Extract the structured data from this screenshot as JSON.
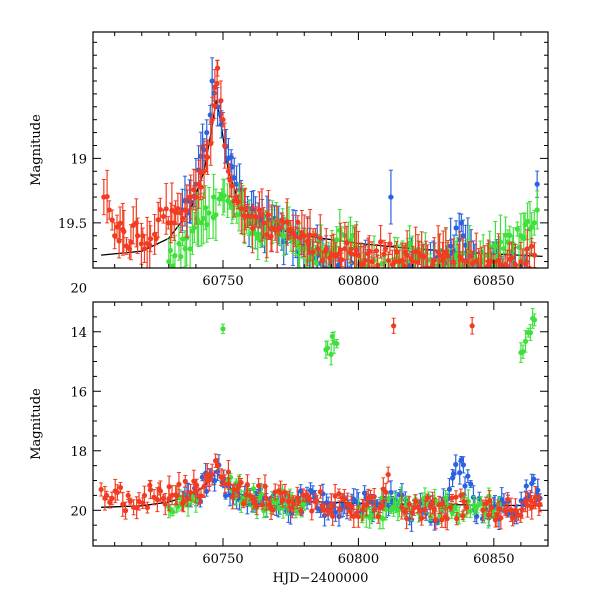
{
  "chart_data": [
    {
      "type": "scatter",
      "panel": "top",
      "ylabel": "Magnitude",
      "xlabel": "",
      "xlim": [
        60702,
        60870
      ],
      "ylim": [
        19.85,
        18.02
      ],
      "y_inverted": true,
      "xticks": [
        60750,
        60800,
        60850
      ],
      "yticks": [
        19,
        19.5,
        20
      ],
      "ytick_labels": [
        "19",
        "19.5",
        "20"
      ],
      "series": [
        {
          "color": "#2a62e0",
          "points": [
            [
              60735,
              19.4
            ],
            [
              60740,
              19.2
            ],
            [
              60744,
              18.8
            ],
            [
              60746,
              18.4
            ],
            [
              60748,
              18.6
            ],
            [
              60752,
              19.0
            ],
            [
              60755,
              19.2
            ],
            [
              60758,
              19.4
            ],
            [
              60762,
              19.5
            ],
            [
              60768,
              19.55
            ],
            [
              60775,
              19.6
            ],
            [
              60782,
              19.7
            ],
            [
              60790,
              19.8
            ],
            [
              60796,
              19.9
            ],
            [
              60805,
              19.9
            ],
            [
              60812,
              19.3
            ],
            [
              60818,
              19.85
            ],
            [
              60825,
              19.9
            ],
            [
              60832,
              19.8
            ],
            [
              60838,
              19.5
            ],
            [
              60844,
              19.9
            ],
            [
              60850,
              19.85
            ],
            [
              60856,
              19.9
            ],
            [
              60862,
              19.8
            ],
            [
              60866,
              19.2
            ]
          ]
        },
        {
          "color": "#3ee03a",
          "points": [
            [
              60730,
              19.8
            ],
            [
              60736,
              19.7
            ],
            [
              60742,
              19.5
            ],
            [
              60750,
              19.3
            ],
            [
              60758,
              19.45
            ],
            [
              60766,
              19.6
            ],
            [
              60772,
              19.5
            ],
            [
              60780,
              19.7
            ],
            [
              60788,
              19.75
            ],
            [
              60795,
              19.6
            ],
            [
              60802,
              19.8
            ],
            [
              60810,
              19.9
            ],
            [
              60820,
              19.7
            ],
            [
              60828,
              19.85
            ],
            [
              60836,
              19.75
            ],
            [
              60845,
              19.8
            ],
            [
              60852,
              19.7
            ],
            [
              60860,
              19.6
            ],
            [
              60866,
              19.4
            ]
          ]
        },
        {
          "color": "#f23c22",
          "points": [
            [
              60706,
              19.3
            ],
            [
              60708,
              19.4
            ],
            [
              60710,
              19.6
            ],
            [
              60713,
              19.55
            ],
            [
              60716,
              19.65
            ],
            [
              60718,
              19.5
            ],
            [
              60721,
              19.7
            ],
            [
              60728,
              19.45
            ],
            [
              60732,
              19.5
            ],
            [
              60736,
              19.4
            ],
            [
              60740,
              19.3
            ],
            [
              60743,
              19.1
            ],
            [
              60746,
              18.7
            ],
            [
              60747,
              18.45
            ],
            [
              60748,
              18.3
            ],
            [
              60750,
              18.7
            ],
            [
              60752,
              19.1
            ],
            [
              60755,
              19.3
            ],
            [
              60760,
              19.45
            ],
            [
              60765,
              19.5
            ],
            [
              60770,
              19.55
            ],
            [
              60775,
              19.55
            ],
            [
              60780,
              19.6
            ],
            [
              60785,
              19.7
            ],
            [
              60790,
              19.75
            ],
            [
              60795,
              19.7
            ],
            [
              60800,
              19.75
            ],
            [
              60805,
              19.8
            ],
            [
              60810,
              19.7
            ],
            [
              60815,
              19.8
            ],
            [
              60820,
              19.8
            ],
            [
              60825,
              19.85
            ],
            [
              60830,
              19.75
            ],
            [
              60835,
              19.8
            ],
            [
              60840,
              19.8
            ],
            [
              60845,
              19.85
            ],
            [
              60850,
              19.8
            ],
            [
              60855,
              19.85
            ],
            [
              60860,
              19.8
            ],
            [
              60865,
              19.75
            ]
          ]
        }
      ],
      "model_curve": [
        [
          60705,
          19.75
        ],
        [
          60720,
          19.72
        ],
        [
          60730,
          19.62
        ],
        [
          60738,
          19.4
        ],
        [
          60743,
          19.1
        ],
        [
          60746,
          18.75
        ],
        [
          60747.5,
          18.55
        ],
        [
          60749,
          18.7
        ],
        [
          60752,
          19.1
        ],
        [
          60756,
          19.35
        ],
        [
          60762,
          19.48
        ],
        [
          60770,
          19.55
        ],
        [
          60780,
          19.6
        ],
        [
          60800,
          19.66
        ],
        [
          60820,
          19.7
        ],
        [
          60840,
          19.73
        ],
        [
          60868,
          19.76
        ]
      ]
    },
    {
      "type": "scatter",
      "panel": "bottom",
      "ylabel": "Magnitude",
      "xlabel": "HJD−2400000",
      "xlim": [
        60702,
        60870
      ],
      "ylim": [
        21.2,
        13.0
      ],
      "y_inverted": true,
      "xticks": [
        60750,
        60800,
        60850
      ],
      "yticks": [
        14,
        16,
        18,
        20
      ],
      "ytick_labels": [
        "14",
        "16",
        "18",
        "20"
      ],
      "series": [
        {
          "color": "#2a62e0",
          "points": [
            [
              60735,
              19.6
            ],
            [
              60740,
              19.5
            ],
            [
              60745,
              18.9
            ],
            [
              60748,
              18.7
            ],
            [
              60752,
              19.2
            ],
            [
              60758,
              19.5
            ],
            [
              60765,
              19.6
            ],
            [
              60772,
              19.7
            ],
            [
              60780,
              19.7
            ],
            [
              60790,
              19.8
            ],
            [
              60800,
              19.8
            ],
            [
              60808,
              19.9
            ],
            [
              60812,
              19.4
            ],
            [
              60818,
              19.9
            ],
            [
              60825,
              20.1
            ],
            [
              60832,
              19.9
            ],
            [
              60838,
              18.3
            ],
            [
              60843,
              20.0
            ],
            [
              60850,
              19.9
            ],
            [
              60858,
              20.0
            ],
            [
              60864,
              19.1
            ],
            [
              60867,
              19.6
            ]
          ]
        },
        {
          "color": "#3ee03a",
          "points": [
            [
              60730,
              19.9
            ],
            [
              60740,
              19.7
            ],
            [
              60750,
              13.9
            ],
            [
              60752,
              19.0
            ],
            [
              60760,
              19.6
            ],
            [
              60770,
              19.7
            ],
            [
              60780,
              19.8
            ],
            [
              60788,
              14.6
            ],
            [
              60792,
              14.4
            ],
            [
              60800,
              19.9
            ],
            [
              60812,
              20.0
            ],
            [
              60825,
              19.8
            ],
            [
              60840,
              19.9
            ],
            [
              60852,
              19.8
            ],
            [
              60860,
              14.7
            ],
            [
              60865,
              13.6
            ]
          ]
        },
        {
          "color": "#f23c22",
          "points": [
            [
              60705,
              19.3
            ],
            [
              60707,
              19.5
            ],
            [
              60709,
              19.6
            ],
            [
              60711,
              19.4
            ],
            [
              60713,
              19.8
            ],
            [
              60715,
              19.5
            ],
            [
              60717,
              19.9
            ],
            [
              60719,
              19.7
            ],
            [
              60721,
              19.5
            ],
            [
              60728,
              19.6
            ],
            [
              60733,
              19.5
            ],
            [
              60738,
              19.4
            ],
            [
              60743,
              19.2
            ],
            [
              60746,
              18.8
            ],
            [
              60748,
              18.5
            ],
            [
              60750,
              18.9
            ],
            [
              60754,
              19.3
            ],
            [
              60760,
              19.5
            ],
            [
              60766,
              19.6
            ],
            [
              60772,
              19.65
            ],
            [
              60778,
              19.7
            ],
            [
              60784,
              19.7
            ],
            [
              60790,
              19.8
            ],
            [
              60796,
              19.8
            ],
            [
              60802,
              19.85
            ],
            [
              60808,
              19.9
            ],
            [
              60811,
              18.8
            ],
            [
              60813,
              13.8
            ],
            [
              60816,
              19.9
            ],
            [
              60822,
              19.9
            ],
            [
              60828,
              19.95
            ],
            [
              60834,
              19.9
            ],
            [
              60840,
              19.9
            ],
            [
              60842,
              13.8
            ],
            [
              60846,
              20.0
            ],
            [
              60852,
              19.95
            ],
            [
              60858,
              20.0
            ],
            [
              60864,
              19.9
            ],
            [
              60867,
              19.8
            ]
          ]
        }
      ],
      "model_curve": [
        [
          60705,
          19.9
        ],
        [
          60720,
          19.85
        ],
        [
          60730,
          19.72
        ],
        [
          60738,
          19.5
        ],
        [
          60743,
          19.2
        ],
        [
          60746,
          18.85
        ],
        [
          60747.5,
          18.7
        ],
        [
          60749,
          18.85
        ],
        [
          60752,
          19.2
        ],
        [
          60756,
          19.45
        ],
        [
          60762,
          19.58
        ],
        [
          60770,
          19.65
        ],
        [
          60780,
          19.7
        ],
        [
          60800,
          19.76
        ],
        [
          60820,
          19.8
        ],
        [
          60840,
          19.82
        ],
        [
          60868,
          19.85
        ]
      ]
    }
  ]
}
